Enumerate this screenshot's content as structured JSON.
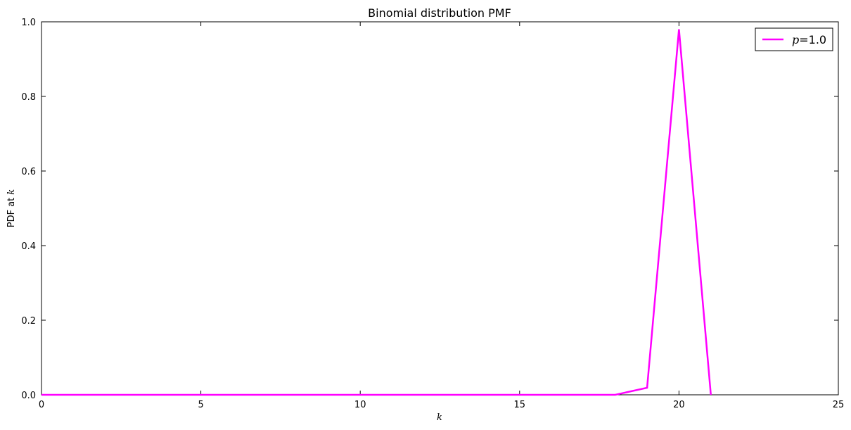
{
  "chart_data": {
    "type": "line",
    "title": "Binomial distribution PMF",
    "xlabel": "k",
    "ylabel_prefix": "PDF at ",
    "ylabel_var": "k",
    "xlim": [
      0,
      25
    ],
    "ylim": [
      0,
      1.0
    ],
    "xticks": [
      0,
      5,
      10,
      15,
      20,
      25
    ],
    "xtick_labels": [
      "0",
      "5",
      "10",
      "15",
      "20",
      "25"
    ],
    "yticks": [
      0.0,
      0.2,
      0.4,
      0.6,
      0.8,
      1.0
    ],
    "ytick_labels": [
      "0.0",
      "0.2",
      "0.4",
      "0.6",
      "0.8",
      "1.0"
    ],
    "grid": false,
    "legend_position": "top-right",
    "series": [
      {
        "name_var": "p",
        "name_value": "=1.0",
        "color": "#ff00ff",
        "x": [
          0,
          1,
          2,
          3,
          4,
          5,
          6,
          7,
          8,
          9,
          10,
          11,
          12,
          13,
          14,
          15,
          16,
          17,
          18,
          19,
          20,
          21
        ],
        "y": [
          0,
          0,
          0,
          0,
          0,
          0,
          0,
          0,
          0,
          0,
          0,
          0,
          0,
          0,
          0,
          0,
          0,
          0,
          0,
          0.019,
          0.98,
          0
        ]
      }
    ]
  }
}
